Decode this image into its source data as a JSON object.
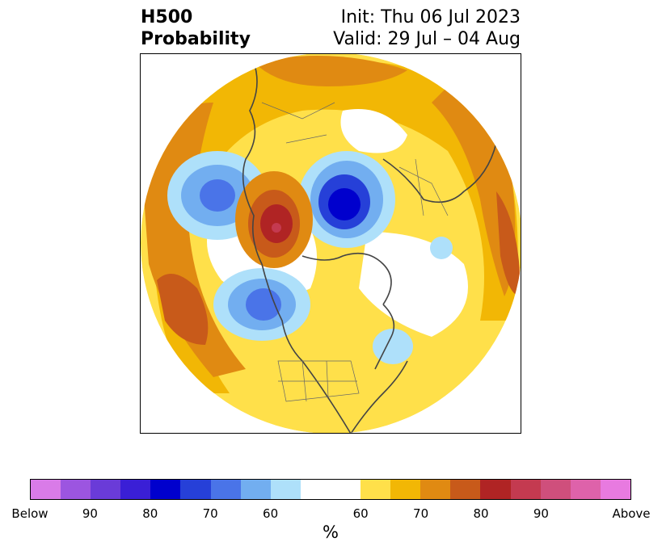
{
  "title": {
    "left_line1": "H500",
    "left_line2": "Probability",
    "right_line1": "Init: Thu 06 Jul 2023",
    "right_line2": "Valid: 29 Jul – 04 Aug"
  },
  "colorbar": {
    "unit": "%",
    "colors": {
      "below_colors": [
        "#d97be8",
        "#9c55e0",
        "#6a3bd8",
        "#3a1fd6",
        "#0000cd",
        "#2640d8",
        "#4a74e8",
        "#72aef0",
        "#aee0fa"
      ],
      "neutral": "#ffffff",
      "above_colors": [
        "#ffe04a",
        "#f2b705",
        "#e08a12",
        "#c85a1a",
        "#b02424",
        "#c43a50",
        "#cf4f7c",
        "#de62aa",
        "#e87ae0"
      ]
    },
    "tick_labels": [
      "Below",
      "90",
      "80",
      "70",
      "60",
      "60",
      "70",
      "80",
      "90",
      "Above"
    ]
  }
}
